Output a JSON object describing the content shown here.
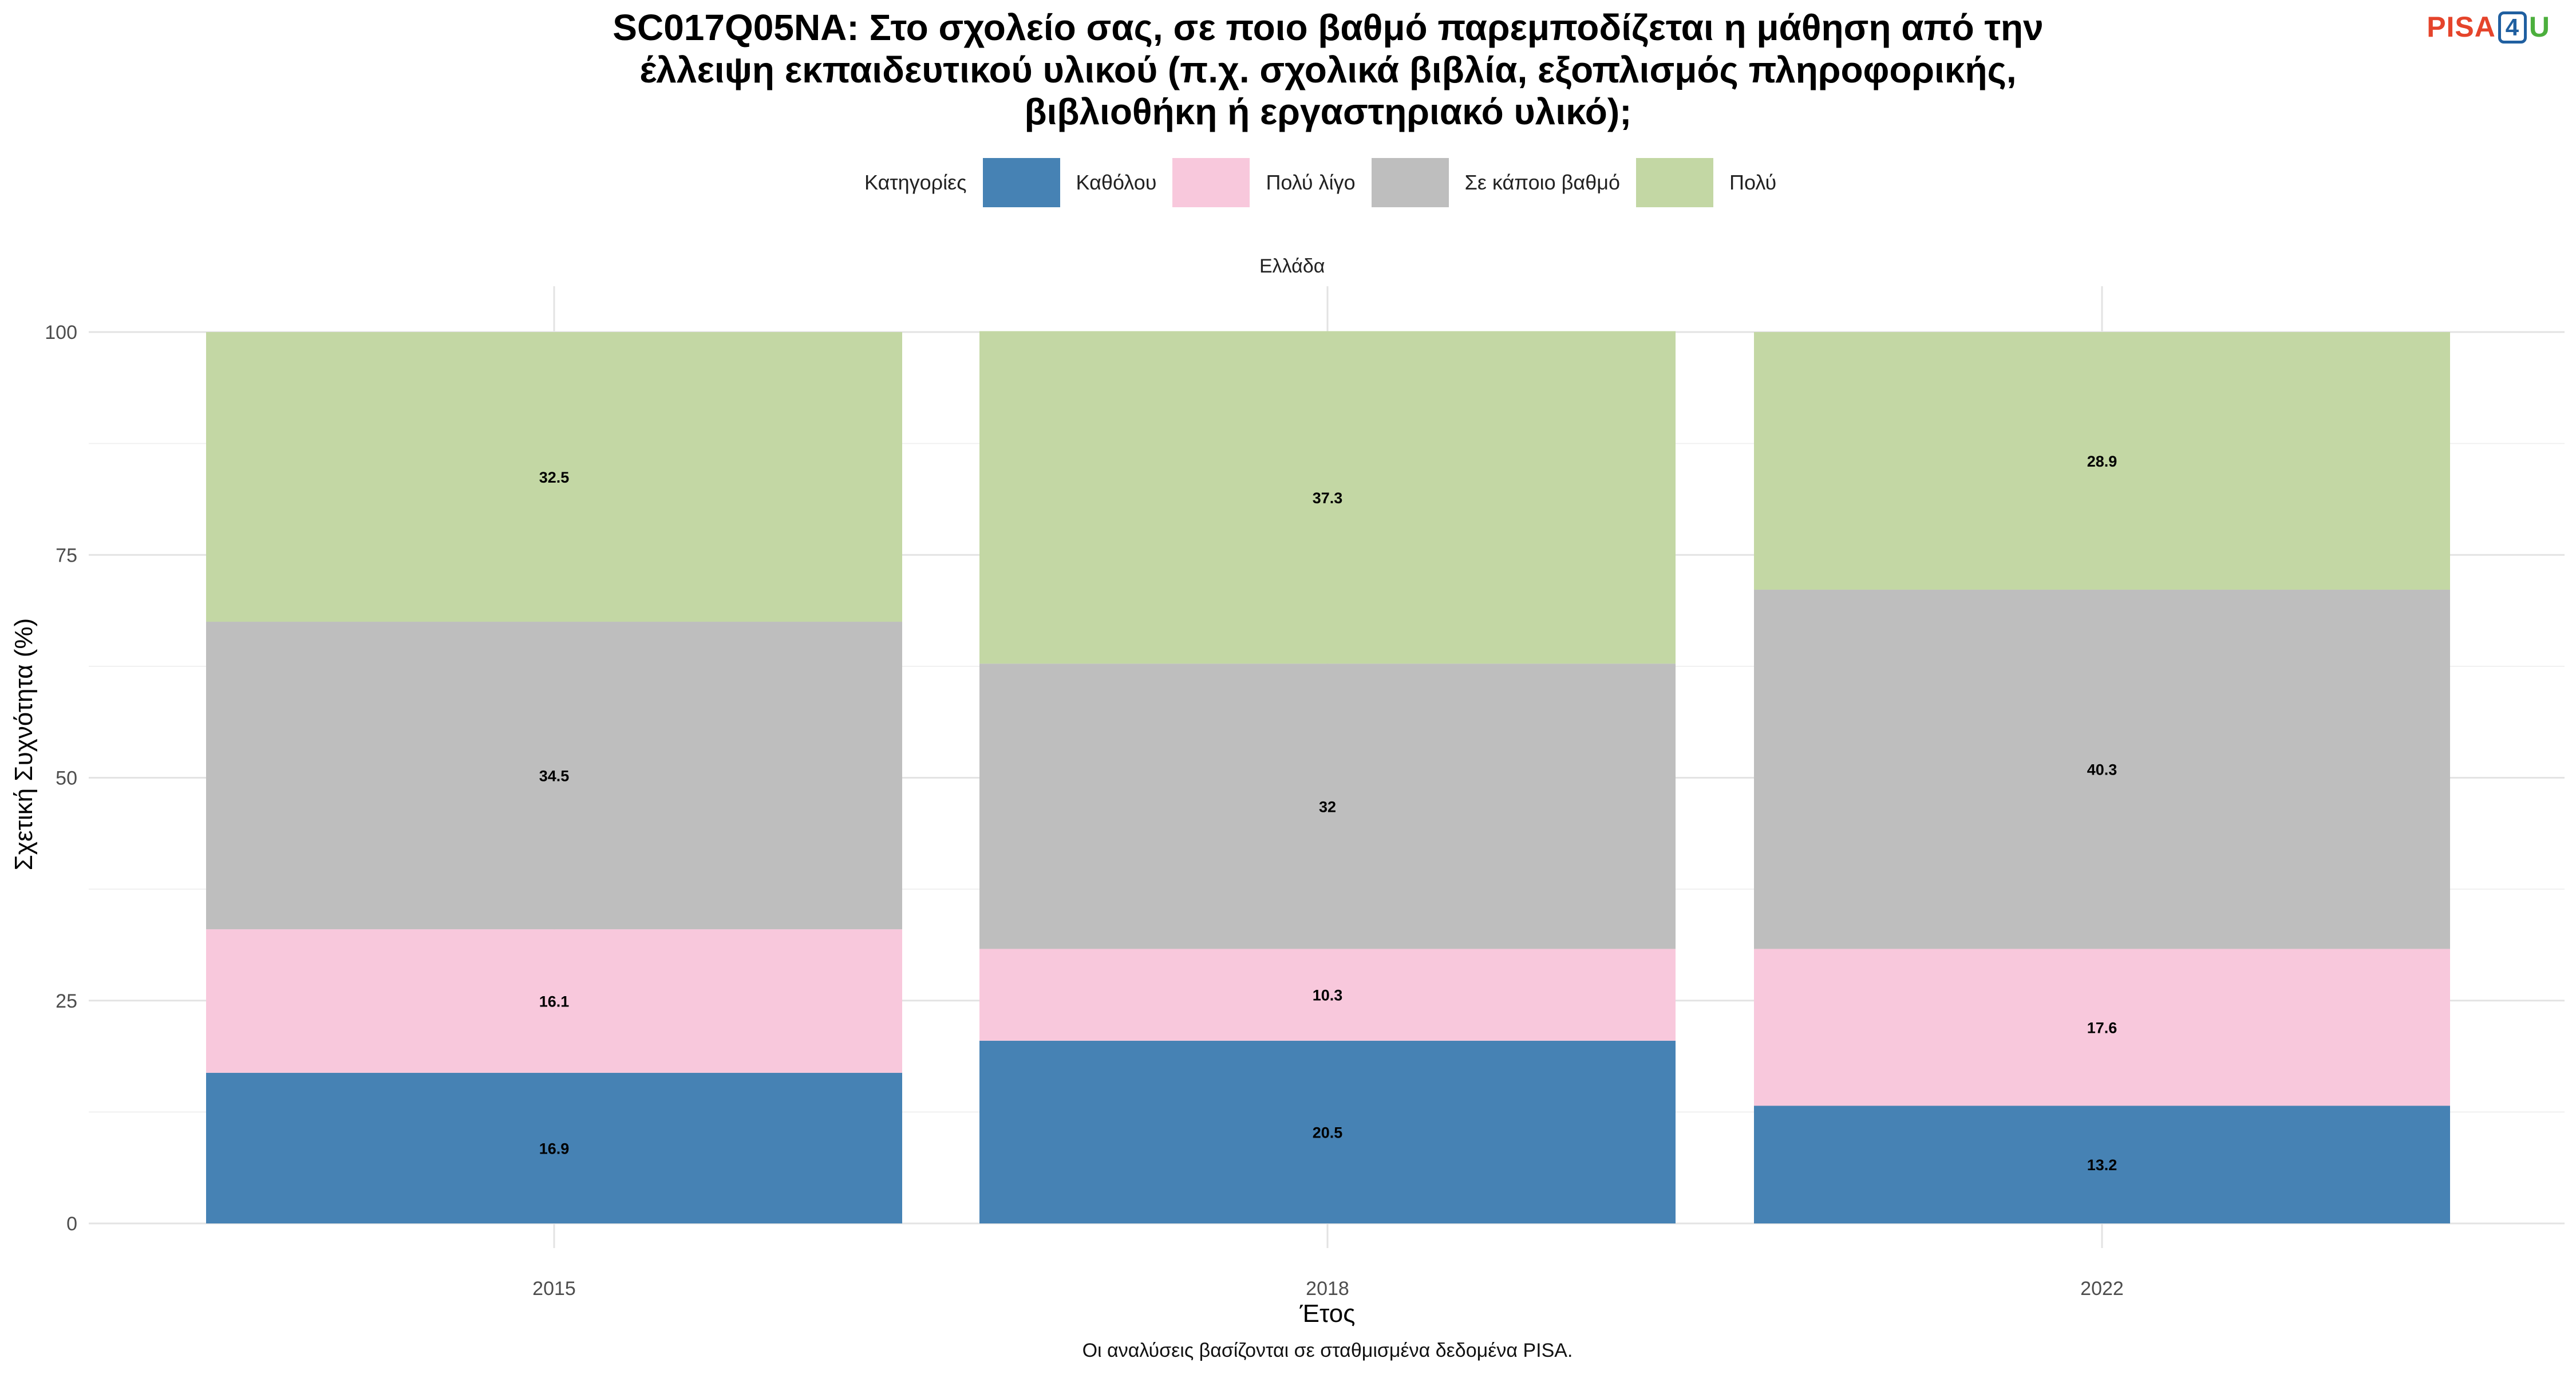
{
  "title_lines": [
    "SC017Q05NA: Στο σχολείο σας, σε ποιο βαθμό παρεμποδίζεται η μάθηση από την",
    "έλλειψη εκπαιδευτικού υλικού (π.χ. σχολικά βιβλία, εξοπλισμός πληροφορικής,",
    "βιβλιοθήκη ή εργαστηριακό υλικό);"
  ],
  "logo": {
    "part1": "PISA",
    "part2": "4",
    "part3": "U"
  },
  "legend": {
    "title": "Κατηγορίες",
    "items": [
      {
        "label": "Καθόλου",
        "color": "#4682b4"
      },
      {
        "label": "Πολύ λίγο",
        "color": "#f8c8dc"
      },
      {
        "label": "Σε κάποιο βαθμό",
        "color": "#bebebe"
      },
      {
        "label": "Πολύ",
        "color": "#c3d7a4"
      }
    ]
  },
  "facet_label": "Ελλάδα",
  "caption": "Οι αναλύσεις βασίζονται σε σταθμισμένα δεδομένα PISA.",
  "chart_data": {
    "type": "bar",
    "stacked": true,
    "categories": [
      "2015",
      "2018",
      "2022"
    ],
    "series": [
      {
        "name": "Καθόλου",
        "values": [
          16.9,
          20.5,
          13.2
        ],
        "labels": [
          "16.9",
          "20.5",
          "13.2"
        ],
        "color": "#4682b4"
      },
      {
        "name": "Πολύ λίγο",
        "values": [
          16.1,
          10.3,
          17.6
        ],
        "labels": [
          "16.1",
          "10.3",
          "17.6"
        ],
        "color": "#f8c8dc"
      },
      {
        "name": "Σε κάποιο βαθμό",
        "values": [
          34.5,
          32,
          40.3
        ],
        "labels": [
          "34.5",
          "32",
          "40.3"
        ],
        "color": "#bebebe"
      },
      {
        "name": "Πολύ",
        "values": [
          32.5,
          37.3,
          28.9
        ],
        "labels": [
          "32.5",
          "37.3",
          "28.9"
        ],
        "color": "#c3d7a4"
      }
    ],
    "xlabel": "Έτος",
    "ylabel": "Σχετική Συχνότητα (%)",
    "ylim": [
      0,
      100
    ],
    "yticks": [
      0,
      25,
      50,
      75,
      100
    ],
    "grid": true,
    "legend_position": "top"
  }
}
